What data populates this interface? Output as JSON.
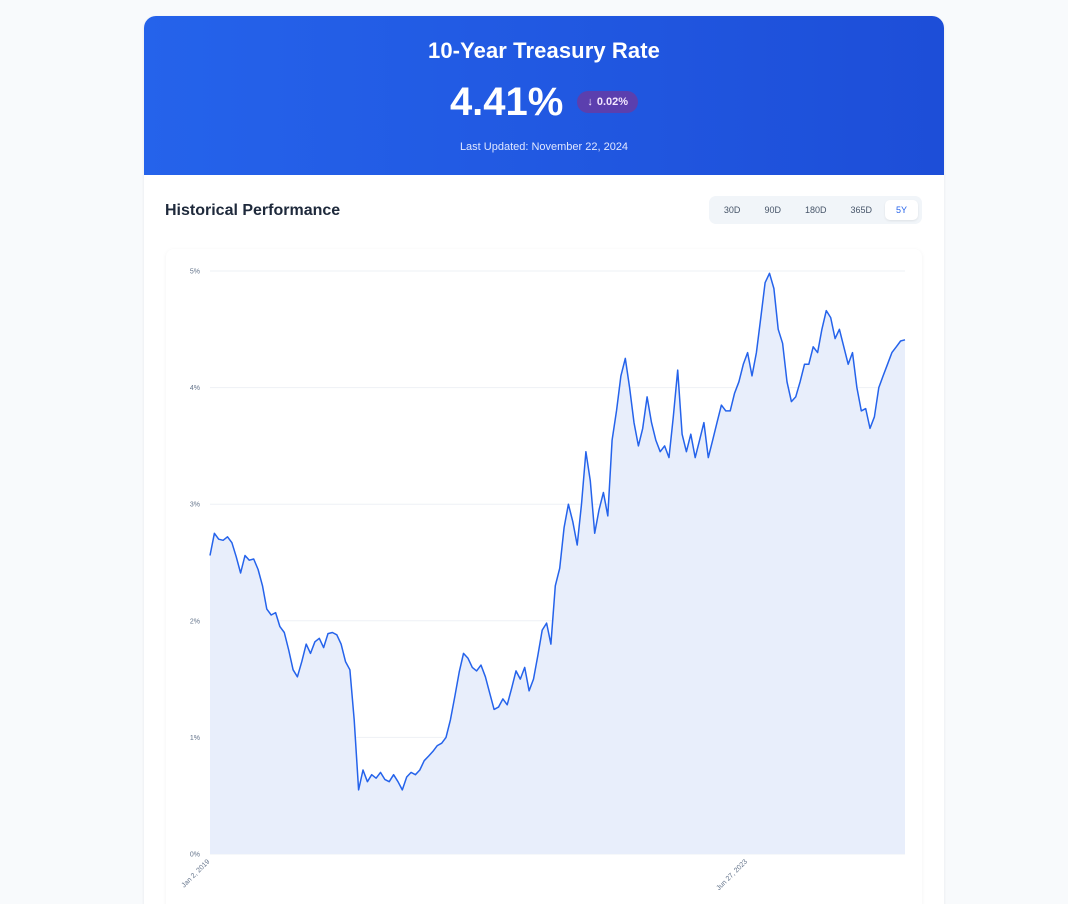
{
  "header": {
    "title": "10-Year Treasury Rate",
    "rate": "4.41%",
    "change_arrow": "↓",
    "change": "0.02%",
    "updated_label": "Last Updated:",
    "updated_date": "November 22, 2024"
  },
  "section": {
    "title": "Historical Performance",
    "ranges": [
      "30D",
      "90D",
      "180D",
      "365D",
      "5Y"
    ],
    "active_range": "5Y"
  },
  "colors": {
    "accent": "#2563eb",
    "line": "#2563eb",
    "fill": "#e8eefb",
    "badge": "#5b3fae"
  },
  "chart_data": {
    "type": "area",
    "title": "",
    "xlabel": "",
    "ylabel": "",
    "ylim": [
      0,
      5
    ],
    "y_ticks": [
      "0%",
      "1%",
      "2%",
      "3%",
      "4%",
      "5%"
    ],
    "x_tick_labels": [
      "Jan 2, 2019",
      "Jun 27, 2023"
    ],
    "grid": true,
    "series": [
      {
        "values": [
          2.56,
          2.75,
          2.7,
          2.69,
          2.72,
          2.67,
          2.55,
          2.41,
          2.56,
          2.52,
          2.53,
          2.44,
          2.3,
          2.1,
          2.05,
          2.07,
          1.95,
          1.9,
          1.75,
          1.58,
          1.52,
          1.65,
          1.8,
          1.72,
          1.82,
          1.85,
          1.77,
          1.89,
          1.9,
          1.88,
          1.8,
          1.65,
          1.58,
          1.15,
          0.55,
          0.72,
          0.62,
          0.68,
          0.65,
          0.7,
          0.64,
          0.62,
          0.68,
          0.62,
          0.55,
          0.66,
          0.7,
          0.68,
          0.72,
          0.8,
          0.84,
          0.88,
          0.93,
          0.95,
          1.0,
          1.15,
          1.35,
          1.56,
          1.72,
          1.68,
          1.6,
          1.57,
          1.62,
          1.52,
          1.38,
          1.24,
          1.26,
          1.33,
          1.28,
          1.42,
          1.57,
          1.5,
          1.6,
          1.4,
          1.5,
          1.7,
          1.92,
          1.98,
          1.8,
          2.3,
          2.45,
          2.8,
          3.0,
          2.85,
          2.65,
          3.0,
          3.45,
          3.2,
          2.75,
          2.95,
          3.1,
          2.9,
          3.55,
          3.8,
          4.1,
          4.25,
          4.0,
          3.7,
          3.5,
          3.65,
          3.92,
          3.7,
          3.55,
          3.45,
          3.5,
          3.4,
          3.75,
          4.15,
          3.6,
          3.45,
          3.6,
          3.4,
          3.55,
          3.7,
          3.4,
          3.55,
          3.7,
          3.85,
          3.8,
          3.8,
          3.95,
          4.05,
          4.2,
          4.3,
          4.1,
          4.3,
          4.6,
          4.9,
          4.98,
          4.85,
          4.5,
          4.38,
          4.05,
          3.88,
          3.92,
          4.05,
          4.2,
          4.2,
          4.35,
          4.3,
          4.5,
          4.66,
          4.6,
          4.42,
          4.5,
          4.35,
          4.2,
          4.3,
          4.0,
          3.8,
          3.82,
          3.65,
          3.75,
          4.0,
          4.1,
          4.2,
          4.3,
          4.35,
          4.4,
          4.41
        ]
      }
    ]
  }
}
